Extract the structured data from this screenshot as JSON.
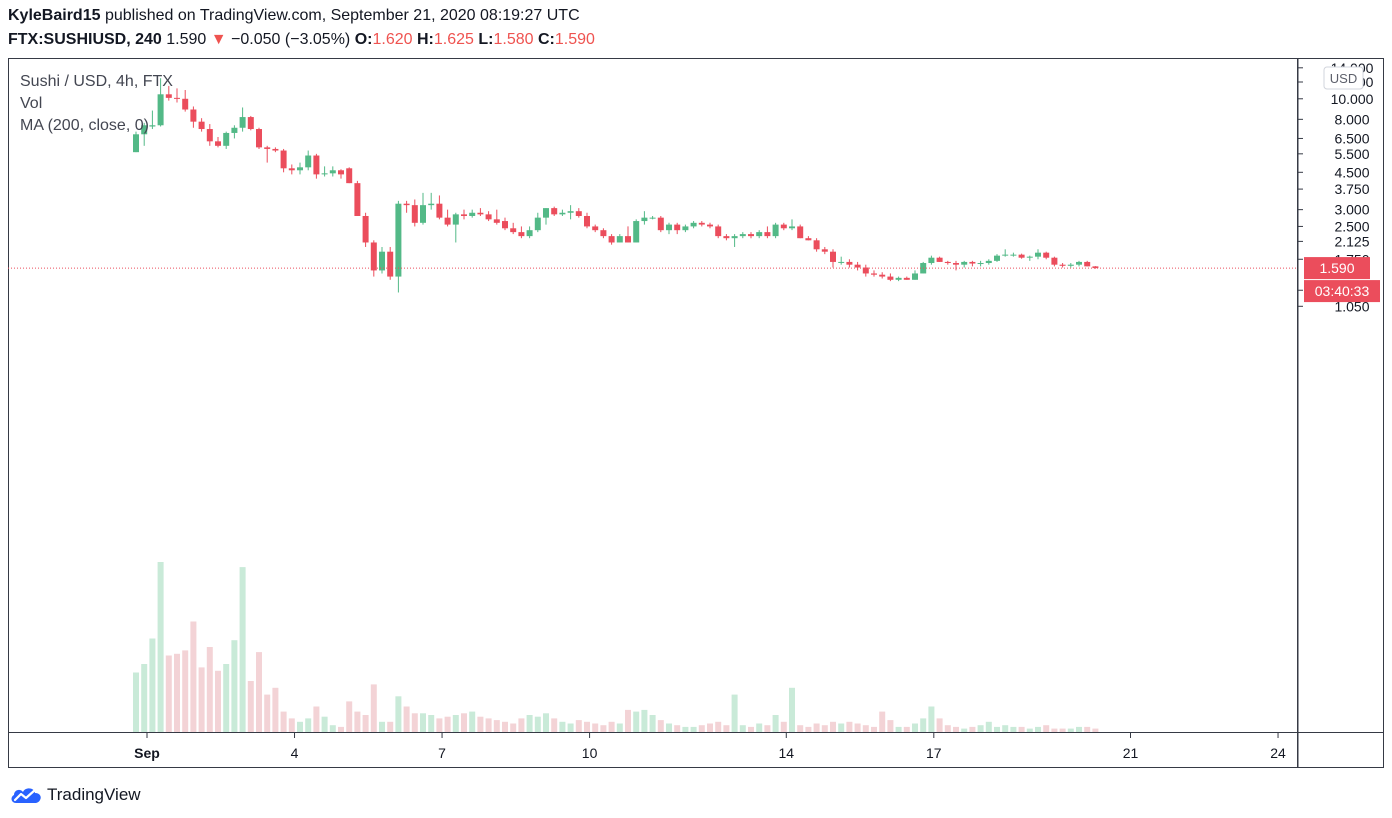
{
  "header": {
    "author": "KyleBaird15",
    "published_text": "published on TradingView.com, September 21, 2020 08:19:27 UTC",
    "symbol": "FTX:SUSHIUSD, 240",
    "price": "1.590",
    "change_arrow": "▼",
    "change": "−0.050 (−3.05%)",
    "open_label": "O:",
    "open": "1.620",
    "high_label": "H:",
    "high": "1.625",
    "low_label": "L:",
    "low": "1.580",
    "close_label": "C:",
    "close": "1.590"
  },
  "legend": {
    "title": "Sushi / USD, 4h, FTX",
    "vol": "Vol",
    "ma": "MA (200, close, 0)"
  },
  "price_axis": {
    "currency": "USD",
    "ticks": [
      "14.000",
      "12.000",
      "10.000",
      "8.000",
      "6.500",
      "5.500",
      "4.500",
      "3.750",
      "3.000",
      "2.500",
      "2.125",
      "1.750",
      "1.250",
      "1.050"
    ],
    "last_price_label": "1.590",
    "countdown_label": "03:40:33"
  },
  "time_axis": {
    "ticks": [
      "Sep",
      "4",
      "7",
      "10",
      "14",
      "17",
      "21",
      "24"
    ]
  },
  "footer": {
    "brand": "TradingView",
    "logo_icon": "tradingview-cloud-icon"
  },
  "colors": {
    "up": "#53b987",
    "down": "#eb4d5c",
    "vol_up": "#c9ead8",
    "vol_down": "#f3d3d6",
    "price_line": "#eb4d5c"
  },
  "chart_data": {
    "type": "candlestick",
    "title": "Sushi / USD, 4h, FTX",
    "interval": "4h",
    "y_scale": "log",
    "ylim": [
      0.95,
      14.2
    ],
    "x_start": "2020-09-01T00:00Z",
    "last_price": 1.59,
    "candles": [
      {
        "o": 5.6,
        "h": 7.0,
        "l": 5.6,
        "c": 6.8,
        "v": 0.35
      },
      {
        "o": 6.8,
        "h": 7.7,
        "l": 6.0,
        "c": 7.5,
        "v": 0.4
      },
      {
        "o": 7.4,
        "h": 8.8,
        "l": 7.2,
        "c": 7.5,
        "v": 0.55
      },
      {
        "o": 7.5,
        "h": 12.5,
        "l": 7.4,
        "c": 10.5,
        "v": 1.0
      },
      {
        "o": 10.5,
        "h": 11.5,
        "l": 9.8,
        "c": 10.1,
        "v": 0.45
      },
      {
        "o": 10.1,
        "h": 11.2,
        "l": 9.6,
        "c": 10.0,
        "v": 0.46
      },
      {
        "o": 10.0,
        "h": 11.0,
        "l": 8.7,
        "c": 8.9,
        "v": 0.48
      },
      {
        "o": 8.9,
        "h": 9.2,
        "l": 7.3,
        "c": 7.8,
        "v": 0.65
      },
      {
        "o": 7.8,
        "h": 8.1,
        "l": 7.0,
        "c": 7.2,
        "v": 0.38
      },
      {
        "o": 7.2,
        "h": 7.6,
        "l": 6.0,
        "c": 6.3,
        "v": 0.5
      },
      {
        "o": 6.3,
        "h": 6.6,
        "l": 5.9,
        "c": 6.0,
        "v": 0.36
      },
      {
        "o": 6.0,
        "h": 7.0,
        "l": 5.8,
        "c": 6.9,
        "v": 0.4
      },
      {
        "o": 6.9,
        "h": 7.5,
        "l": 6.5,
        "c": 7.3,
        "v": 0.54
      },
      {
        "o": 7.3,
        "h": 9.1,
        "l": 7.0,
        "c": 8.2,
        "v": 0.97
      },
      {
        "o": 8.2,
        "h": 8.3,
        "l": 7.1,
        "c": 7.2,
        "v": 0.3
      },
      {
        "o": 7.2,
        "h": 7.3,
        "l": 5.8,
        "c": 5.9,
        "v": 0.47
      },
      {
        "o": 5.9,
        "h": 6.0,
        "l": 5.0,
        "c": 5.8,
        "v": 0.22
      },
      {
        "o": 5.8,
        "h": 5.9,
        "l": 5.6,
        "c": 5.7,
        "v": 0.26
      },
      {
        "o": 5.7,
        "h": 5.8,
        "l": 4.5,
        "c": 4.7,
        "v": 0.12
      },
      {
        "o": 4.7,
        "h": 4.9,
        "l": 4.4,
        "c": 4.6,
        "v": 0.08
      },
      {
        "o": 4.6,
        "h": 5.0,
        "l": 4.4,
        "c": 4.75,
        "v": 0.06
      },
      {
        "o": 4.75,
        "h": 5.7,
        "l": 4.6,
        "c": 5.4,
        "v": 0.08
      },
      {
        "o": 5.4,
        "h": 5.5,
        "l": 4.2,
        "c": 4.4,
        "v": 0.15
      },
      {
        "o": 4.4,
        "h": 4.8,
        "l": 4.3,
        "c": 4.45,
        "v": 0.09
      },
      {
        "o": 4.45,
        "h": 4.8,
        "l": 4.3,
        "c": 4.6,
        "v": 0.04
      },
      {
        "o": 4.6,
        "h": 4.65,
        "l": 4.2,
        "c": 4.4,
        "v": 0.03
      },
      {
        "o": 4.7,
        "h": 4.75,
        "l": 4.0,
        "c": 4.0,
        "v": 0.18
      },
      {
        "o": 4.0,
        "h": 4.1,
        "l": 2.8,
        "c": 2.8,
        "v": 0.12
      },
      {
        "o": 2.8,
        "h": 2.9,
        "l": 2.0,
        "c": 2.1,
        "v": 0.1
      },
      {
        "o": 2.1,
        "h": 2.15,
        "l": 1.45,
        "c": 1.55,
        "v": 0.28
      },
      {
        "o": 1.55,
        "h": 2.0,
        "l": 1.5,
        "c": 1.9,
        "v": 0.06
      },
      {
        "o": 1.9,
        "h": 2.0,
        "l": 1.4,
        "c": 1.45,
        "v": 0.06
      },
      {
        "o": 1.45,
        "h": 3.3,
        "l": 1.22,
        "c": 3.2,
        "v": 0.21
      },
      {
        "o": 3.2,
        "h": 3.3,
        "l": 2.9,
        "c": 3.15,
        "v": 0.15
      },
      {
        "o": 3.15,
        "h": 3.35,
        "l": 2.5,
        "c": 2.6,
        "v": 0.11
      },
      {
        "o": 2.6,
        "h": 3.6,
        "l": 2.55,
        "c": 3.15,
        "v": 0.11
      },
      {
        "o": 3.15,
        "h": 3.6,
        "l": 3.0,
        "c": 3.2,
        "v": 0.1
      },
      {
        "o": 3.2,
        "h": 3.5,
        "l": 2.7,
        "c": 2.75,
        "v": 0.08
      },
      {
        "o": 2.75,
        "h": 3.0,
        "l": 2.5,
        "c": 2.55,
        "v": 0.09
      },
      {
        "o": 2.55,
        "h": 2.9,
        "l": 2.1,
        "c": 2.85,
        "v": 0.1
      },
      {
        "o": 2.85,
        "h": 3.0,
        "l": 2.7,
        "c": 2.8,
        "v": 0.11
      },
      {
        "o": 2.8,
        "h": 3.0,
        "l": 2.75,
        "c": 2.9,
        "v": 0.12
      },
      {
        "o": 2.9,
        "h": 3.05,
        "l": 2.8,
        "c": 2.85,
        "v": 0.09
      },
      {
        "o": 2.85,
        "h": 2.95,
        "l": 2.65,
        "c": 2.7,
        "v": 0.08
      },
      {
        "o": 2.7,
        "h": 3.0,
        "l": 2.55,
        "c": 2.6,
        "v": 0.07
      },
      {
        "o": 2.65,
        "h": 2.75,
        "l": 2.4,
        "c": 2.45,
        "v": 0.06
      },
      {
        "o": 2.45,
        "h": 2.6,
        "l": 2.3,
        "c": 2.35,
        "v": 0.05
      },
      {
        "o": 2.35,
        "h": 2.5,
        "l": 2.2,
        "c": 2.25,
        "v": 0.08
      },
      {
        "o": 2.25,
        "h": 2.5,
        "l": 2.2,
        "c": 2.4,
        "v": 0.1
      },
      {
        "o": 2.4,
        "h": 2.9,
        "l": 2.35,
        "c": 2.75,
        "v": 0.09
      },
      {
        "o": 2.75,
        "h": 3.05,
        "l": 2.55,
        "c": 3.05,
        "v": 0.11
      },
      {
        "o": 3.05,
        "h": 3.1,
        "l": 2.8,
        "c": 2.85,
        "v": 0.08
      },
      {
        "o": 2.85,
        "h": 3.0,
        "l": 2.8,
        "c": 2.9,
        "v": 0.06
      },
      {
        "o": 2.9,
        "h": 3.15,
        "l": 2.7,
        "c": 2.95,
        "v": 0.05
      },
      {
        "o": 2.95,
        "h": 3.05,
        "l": 2.75,
        "c": 2.8,
        "v": 0.07
      },
      {
        "o": 2.8,
        "h": 2.9,
        "l": 2.45,
        "c": 2.5,
        "v": 0.06
      },
      {
        "o": 2.5,
        "h": 2.55,
        "l": 2.35,
        "c": 2.4,
        "v": 0.05
      },
      {
        "o": 2.4,
        "h": 2.45,
        "l": 2.2,
        "c": 2.25,
        "v": 0.04
      },
      {
        "o": 2.25,
        "h": 2.3,
        "l": 2.05,
        "c": 2.1,
        "v": 0.06
      },
      {
        "o": 2.1,
        "h": 2.3,
        "l": 2.1,
        "c": 2.25,
        "v": 0.05
      },
      {
        "o": 2.25,
        "h": 2.5,
        "l": 2.1,
        "c": 2.1,
        "v": 0.13
      },
      {
        "o": 2.1,
        "h": 2.7,
        "l": 2.1,
        "c": 2.65,
        "v": 0.12
      },
      {
        "o": 2.65,
        "h": 2.95,
        "l": 2.55,
        "c": 2.75,
        "v": 0.13
      },
      {
        "o": 2.75,
        "h": 2.8,
        "l": 2.7,
        "c": 2.75,
        "v": 0.1
      },
      {
        "o": 2.75,
        "h": 2.8,
        "l": 2.35,
        "c": 2.4,
        "v": 0.07
      },
      {
        "o": 2.4,
        "h": 2.6,
        "l": 2.3,
        "c": 2.55,
        "v": 0.05
      },
      {
        "o": 2.55,
        "h": 2.6,
        "l": 2.3,
        "c": 2.4,
        "v": 0.04
      },
      {
        "o": 2.4,
        "h": 2.55,
        "l": 2.35,
        "c": 2.5,
        "v": 0.03
      },
      {
        "o": 2.5,
        "h": 2.65,
        "l": 2.45,
        "c": 2.6,
        "v": 0.03
      },
      {
        "o": 2.6,
        "h": 2.65,
        "l": 2.5,
        "c": 2.55,
        "v": 0.04
      },
      {
        "o": 2.55,
        "h": 2.6,
        "l": 2.45,
        "c": 2.5,
        "v": 0.05
      },
      {
        "o": 2.5,
        "h": 2.55,
        "l": 2.2,
        "c": 2.25,
        "v": 0.06
      },
      {
        "o": 2.25,
        "h": 2.3,
        "l": 2.15,
        "c": 2.2,
        "v": 0.04
      },
      {
        "o": 2.2,
        "h": 2.3,
        "l": 2.0,
        "c": 2.25,
        "v": 0.22
      },
      {
        "o": 2.25,
        "h": 2.35,
        "l": 2.2,
        "c": 2.3,
        "v": 0.04
      },
      {
        "o": 2.3,
        "h": 2.35,
        "l": 2.2,
        "c": 2.25,
        "v": 0.03
      },
      {
        "o": 2.25,
        "h": 2.4,
        "l": 2.2,
        "c": 2.35,
        "v": 0.05
      },
      {
        "o": 2.35,
        "h": 2.5,
        "l": 2.2,
        "c": 2.25,
        "v": 0.04
      },
      {
        "o": 2.25,
        "h": 2.6,
        "l": 2.2,
        "c": 2.55,
        "v": 0.1
      },
      {
        "o": 2.55,
        "h": 2.6,
        "l": 2.4,
        "c": 2.45,
        "v": 0.06
      },
      {
        "o": 2.45,
        "h": 2.7,
        "l": 2.4,
        "c": 2.5,
        "v": 0.26
      },
      {
        "o": 2.5,
        "h": 2.55,
        "l": 2.2,
        "c": 2.2,
        "v": 0.04
      },
      {
        "o": 2.2,
        "h": 2.25,
        "l": 2.15,
        "c": 2.15,
        "v": 0.03
      },
      {
        "o": 2.15,
        "h": 2.2,
        "l": 1.9,
        "c": 1.95,
        "v": 0.05
      },
      {
        "o": 1.95,
        "h": 2.0,
        "l": 1.85,
        "c": 1.9,
        "v": 0.04
      },
      {
        "o": 1.9,
        "h": 1.95,
        "l": 1.6,
        "c": 1.7,
        "v": 0.06
      },
      {
        "o": 1.7,
        "h": 1.8,
        "l": 1.65,
        "c": 1.7,
        "v": 0.05
      },
      {
        "o": 1.7,
        "h": 1.75,
        "l": 1.6,
        "c": 1.65,
        "v": 0.06
      },
      {
        "o": 1.65,
        "h": 1.7,
        "l": 1.55,
        "c": 1.6,
        "v": 0.05
      },
      {
        "o": 1.6,
        "h": 1.65,
        "l": 1.45,
        "c": 1.5,
        "v": 0.04
      },
      {
        "o": 1.5,
        "h": 1.55,
        "l": 1.45,
        "c": 1.48,
        "v": 0.03
      },
      {
        "o": 1.48,
        "h": 1.52,
        "l": 1.42,
        "c": 1.45,
        "v": 0.12
      },
      {
        "o": 1.45,
        "h": 1.5,
        "l": 1.38,
        "c": 1.4,
        "v": 0.07
      },
      {
        "o": 1.4,
        "h": 1.45,
        "l": 1.38,
        "c": 1.43,
        "v": 0.03
      },
      {
        "o": 1.43,
        "h": 1.45,
        "l": 1.4,
        "c": 1.4,
        "v": 0.03
      },
      {
        "o": 1.4,
        "h": 1.55,
        "l": 1.4,
        "c": 1.5,
        "v": 0.05
      },
      {
        "o": 1.5,
        "h": 1.7,
        "l": 1.5,
        "c": 1.68,
        "v": 0.08
      },
      {
        "o": 1.68,
        "h": 1.82,
        "l": 1.65,
        "c": 1.78,
        "v": 0.15
      },
      {
        "o": 1.78,
        "h": 1.8,
        "l": 1.7,
        "c": 1.7,
        "v": 0.08
      },
      {
        "o": 1.7,
        "h": 1.72,
        "l": 1.65,
        "c": 1.68,
        "v": 0.04
      },
      {
        "o": 1.68,
        "h": 1.72,
        "l": 1.55,
        "c": 1.65,
        "v": 0.03
      },
      {
        "o": 1.65,
        "h": 1.72,
        "l": 1.6,
        "c": 1.7,
        "v": 0.02
      },
      {
        "o": 1.7,
        "h": 1.72,
        "l": 1.62,
        "c": 1.67,
        "v": 0.03
      },
      {
        "o": 1.67,
        "h": 1.72,
        "l": 1.62,
        "c": 1.68,
        "v": 0.04
      },
      {
        "o": 1.68,
        "h": 1.75,
        "l": 1.65,
        "c": 1.72,
        "v": 0.06
      },
      {
        "o": 1.72,
        "h": 1.85,
        "l": 1.7,
        "c": 1.82,
        "v": 0.03
      },
      {
        "o": 1.82,
        "h": 1.95,
        "l": 1.8,
        "c": 1.84,
        "v": 0.04
      },
      {
        "o": 1.84,
        "h": 1.88,
        "l": 1.8,
        "c": 1.84,
        "v": 0.03
      },
      {
        "o": 1.84,
        "h": 1.86,
        "l": 1.76,
        "c": 1.78,
        "v": 0.03
      },
      {
        "o": 1.78,
        "h": 1.82,
        "l": 1.72,
        "c": 1.8,
        "v": 0.02
      },
      {
        "o": 1.8,
        "h": 1.95,
        "l": 1.75,
        "c": 1.88,
        "v": 0.03
      },
      {
        "o": 1.88,
        "h": 1.9,
        "l": 1.75,
        "c": 1.78,
        "v": 0.04
      },
      {
        "o": 1.78,
        "h": 1.8,
        "l": 1.62,
        "c": 1.65,
        "v": 0.02
      },
      {
        "o": 1.65,
        "h": 1.68,
        "l": 1.6,
        "c": 1.63,
        "v": 0.02
      },
      {
        "o": 1.63,
        "h": 1.68,
        "l": 1.6,
        "c": 1.65,
        "v": 0.02
      },
      {
        "o": 1.65,
        "h": 1.72,
        "l": 1.62,
        "c": 1.7,
        "v": 0.03
      },
      {
        "o": 1.7,
        "h": 1.72,
        "l": 1.62,
        "c": 1.62,
        "v": 0.03
      },
      {
        "o": 1.62,
        "h": 1.625,
        "l": 1.58,
        "c": 1.59,
        "v": 0.02
      }
    ]
  }
}
